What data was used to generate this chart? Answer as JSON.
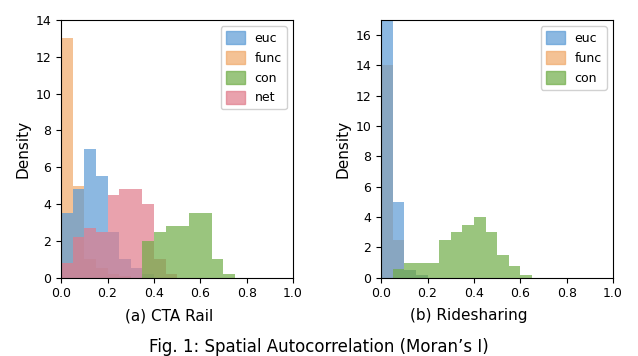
{
  "title": "Fig. 1: Spatial Autocorrelation (Moran’s I)",
  "subplot_a_title": "(a) CTA Rail",
  "subplot_b_title": "(b) Ridesharing",
  "ylabel": "Density",
  "xlim": [
    0,
    1.0
  ],
  "ylim_a": [
    0,
    14
  ],
  "ylim_b": [
    0,
    17
  ],
  "colors": {
    "euc": "#5b9bd5",
    "func": "#f0a868",
    "con": "#70ad47",
    "net": "#e07b8a"
  },
  "alpha": 0.7,
  "bin_width": 0.05,
  "cta_func_bins": [
    0.0,
    0.05,
    0.1,
    0.15,
    0.2,
    0.25,
    0.3,
    0.35,
    0.4,
    0.45,
    0.5,
    0.55,
    0.6,
    0.65,
    0.7,
    0.75,
    0.8,
    0.85,
    0.9,
    0.95
  ],
  "cta_func_vals": [
    13.0,
    5.0,
    1.0,
    0.5,
    0.2,
    0.1,
    0.0,
    0.0,
    0.0,
    0.0,
    0.0,
    0.0,
    0.0,
    0.0,
    0.0,
    0.0,
    0.0,
    0.0,
    0.0,
    0.0
  ],
  "cta_euc_bins": [
    0.0,
    0.05,
    0.1,
    0.15,
    0.2,
    0.25,
    0.3,
    0.35,
    0.4,
    0.45,
    0.5,
    0.55,
    0.6,
    0.65,
    0.7,
    0.75,
    0.8,
    0.85,
    0.9,
    0.95
  ],
  "cta_euc_vals": [
    3.5,
    4.8,
    7.0,
    5.5,
    2.5,
    1.0,
    0.5,
    0.2,
    0.0,
    0.0,
    0.0,
    0.0,
    0.0,
    0.0,
    0.0,
    0.0,
    0.0,
    0.0,
    0.0,
    0.0
  ],
  "cta_net_bins": [
    0.0,
    0.05,
    0.1,
    0.15,
    0.2,
    0.25,
    0.3,
    0.35,
    0.4,
    0.45,
    0.5,
    0.55,
    0.6,
    0.65,
    0.7,
    0.75,
    0.8,
    0.85,
    0.9,
    0.95
  ],
  "cta_net_vals": [
    0.8,
    2.2,
    2.7,
    2.5,
    4.5,
    4.8,
    4.8,
    4.0,
    1.0,
    0.2,
    0.0,
    0.0,
    0.0,
    0.0,
    0.0,
    0.0,
    0.0,
    0.0,
    0.0,
    0.0
  ],
  "cta_con_bins": [
    0.0,
    0.05,
    0.1,
    0.15,
    0.2,
    0.25,
    0.3,
    0.35,
    0.4,
    0.45,
    0.5,
    0.55,
    0.6,
    0.65,
    0.7,
    0.75,
    0.8,
    0.85,
    0.9,
    0.95
  ],
  "cta_con_vals": [
    0.0,
    0.0,
    0.0,
    0.0,
    0.0,
    0.0,
    0.0,
    2.0,
    2.5,
    2.8,
    2.8,
    3.5,
    3.5,
    1.0,
    0.2,
    0.0,
    0.0,
    0.0,
    0.0,
    0.0
  ],
  "ride_euc_bins": [
    0.0,
    0.05,
    0.1,
    0.15,
    0.2,
    0.25,
    0.3,
    0.35,
    0.4,
    0.45,
    0.5,
    0.55,
    0.6,
    0.65,
    0.7,
    0.75,
    0.8,
    0.85,
    0.9,
    0.95
  ],
  "ride_euc_vals": [
    17.0,
    5.0,
    0.5,
    0.2,
    0.0,
    0.0,
    0.0,
    0.0,
    0.0,
    0.0,
    0.0,
    0.0,
    0.0,
    0.0,
    0.0,
    0.0,
    0.0,
    0.0,
    0.0,
    0.0
  ],
  "ride_func_bins": [
    0.0,
    0.05,
    0.1,
    0.15,
    0.2,
    0.25,
    0.3,
    0.35,
    0.4,
    0.45,
    0.5,
    0.55,
    0.6,
    0.65,
    0.7,
    0.75,
    0.8,
    0.85,
    0.9,
    0.95
  ],
  "ride_func_vals": [
    14.0,
    2.5,
    0.5,
    0.2,
    0.0,
    0.0,
    0.0,
    0.0,
    0.0,
    0.0,
    0.0,
    0.0,
    0.0,
    0.0,
    0.0,
    0.0,
    0.0,
    0.0,
    0.0,
    0.0
  ],
  "ride_con_bins": [
    0.0,
    0.05,
    0.1,
    0.15,
    0.2,
    0.25,
    0.3,
    0.35,
    0.4,
    0.45,
    0.5,
    0.55,
    0.6,
    0.65,
    0.7,
    0.75,
    0.8,
    0.85,
    0.9,
    0.95
  ],
  "ride_con_vals": [
    0.0,
    0.6,
    1.0,
    1.0,
    1.0,
    2.5,
    3.0,
    3.5,
    4.0,
    3.0,
    1.5,
    0.8,
    0.2,
    0.0,
    0.0,
    0.0,
    0.0,
    0.0,
    0.0,
    0.0
  ]
}
